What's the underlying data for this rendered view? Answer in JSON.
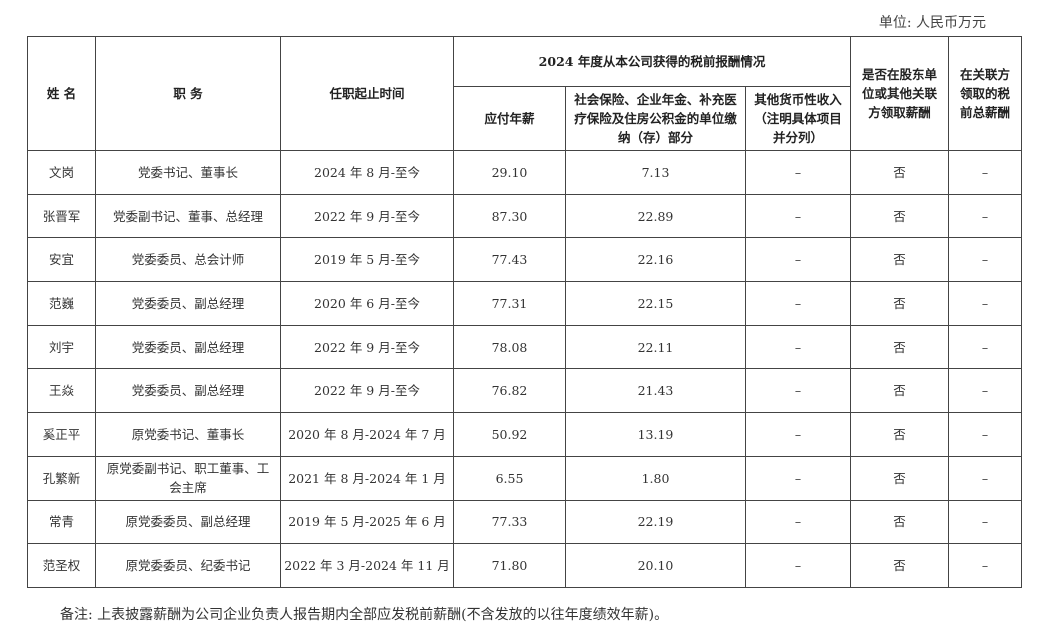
{
  "unit_label": "单位: 人民币万元",
  "header": {
    "name": "姓 名",
    "position": "职 务",
    "term": "任职起止时间",
    "group": "2024 年度从本公司获得的税前报酬情况",
    "salary": "应付年薪",
    "social": "社会保险、企业年金、补充医疗保险及住房公积金的单位缴纳（存）部分",
    "other": "其他货币性收入（注明具体项目并分列）",
    "shareholder": "是否在股东单位或其他关联方领取薪酬",
    "related": "在关联方领取的税前总薪酬"
  },
  "rows": [
    {
      "name": "文岗",
      "position": "党委书记、董事长",
      "term": "2024 年 8 月-至今",
      "salary": "29.10",
      "social": "7.13",
      "other": "–",
      "shareholder": "否",
      "related": "–"
    },
    {
      "name": "张晋军",
      "position": "党委副书记、董事、总经理",
      "term": "2022 年 9 月-至今",
      "salary": "87.30",
      "social": "22.89",
      "other": "–",
      "shareholder": "否",
      "related": "–"
    },
    {
      "name": "安宜",
      "position": "党委委员、总会计师",
      "term": "2019 年 5 月-至今",
      "salary": "77.43",
      "social": "22.16",
      "other": "–",
      "shareholder": "否",
      "related": "–"
    },
    {
      "name": "范巍",
      "position": "党委委员、副总经理",
      "term": "2020 年 6 月-至今",
      "salary": "77.31",
      "social": "22.15",
      "other": "–",
      "shareholder": "否",
      "related": "–"
    },
    {
      "name": "刘宇",
      "position": "党委委员、副总经理",
      "term": "2022 年 9 月-至今",
      "salary": "78.08",
      "social": "22.11",
      "other": "–",
      "shareholder": "否",
      "related": "–"
    },
    {
      "name": "王焱",
      "position": "党委委员、副总经理",
      "term": "2022 年 9 月-至今",
      "salary": "76.82",
      "social": "21.43",
      "other": "–",
      "shareholder": "否",
      "related": "–"
    },
    {
      "name": "奚正平",
      "position": "原党委书记、董事长",
      "term": "2020 年 8 月-2024 年 7 月",
      "salary": "50.92",
      "social": "13.19",
      "other": "–",
      "shareholder": "否",
      "related": "–"
    },
    {
      "name": "孔繁新",
      "position": "原党委副书记、职工董事、工会主席",
      "term": "2021 年 8 月-2024 年 1 月",
      "salary": "6.55",
      "social": "1.80",
      "other": "–",
      "shareholder": "否",
      "related": "–"
    },
    {
      "name": "常青",
      "position": "原党委委员、副总经理",
      "term": "2019 年 5 月-2025 年 6 月",
      "salary": "77.33",
      "social": "22.19",
      "other": "–",
      "shareholder": "否",
      "related": "–"
    },
    {
      "name": "范圣权",
      "position": "原党委委员、纪委书记",
      "term": "2022 年 3 月-2024 年 11 月",
      "salary": "71.80",
      "social": "20.10",
      "other": "–",
      "shareholder": "否",
      "related": "–"
    }
  ],
  "note": "备注: 上表披露薪酬为公司企业负责人报告期内全部应发税前薪酬(不含发放的以往年度绩效年薪)。"
}
